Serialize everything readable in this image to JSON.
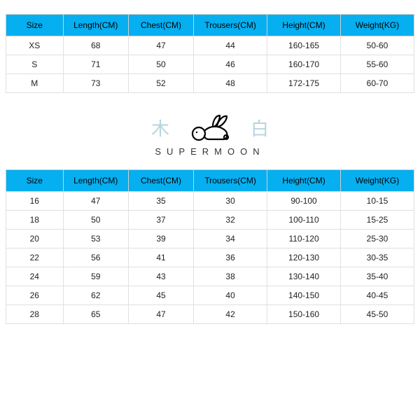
{
  "columns": [
    "Size",
    "Length(CM)",
    "Chest(CM)",
    "Trousers(CM)",
    "Height(CM)",
    "Weight(KG)"
  ],
  "adult_table": {
    "rows": [
      [
        "XS",
        "68",
        "47",
        "44",
        "160-165",
        "50-60"
      ],
      [
        "S",
        "71",
        "50",
        "46",
        "160-170",
        "55-60"
      ],
      [
        "M",
        "73",
        "52",
        "48",
        "172-175",
        "60-70"
      ]
    ]
  },
  "kids_table": {
    "rows": [
      [
        "16",
        "47",
        "35",
        "30",
        "90-100",
        "10-15"
      ],
      [
        "18",
        "50",
        "37",
        "32",
        "100-110",
        "15-25"
      ],
      [
        "20",
        "53",
        "39",
        "34",
        "110-120",
        "25-30"
      ],
      [
        "22",
        "56",
        "41",
        "36",
        "120-130",
        "30-35"
      ],
      [
        "24",
        "59",
        "43",
        "38",
        "130-140",
        "35-40"
      ],
      [
        "26",
        "62",
        "45",
        "40",
        "140-150",
        "40-45"
      ],
      [
        "28",
        "65",
        "47",
        "42",
        "150-160",
        "45-50"
      ]
    ]
  },
  "logo": {
    "left_char": "木",
    "right_char": "白",
    "brand": "SUPERMOON"
  },
  "style": {
    "header_bg": "#05aff0",
    "header_text": "#000000",
    "border_color": "#e0e0e0",
    "cjk_color": "#b8d4de",
    "font_size_table": 12,
    "font_size_brand": 13,
    "brand_letter_spacing": 8,
    "col_widths_pct": [
      14,
      16,
      16,
      18,
      18,
      18
    ]
  }
}
